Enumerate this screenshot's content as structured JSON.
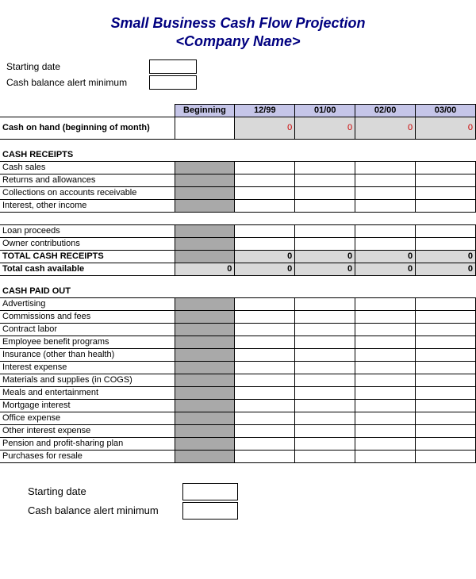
{
  "title_line1": "Small Business Cash Flow Projection",
  "title_line2": "<Company Name>",
  "fields": {
    "starting_date_label": "Starting date",
    "alert_min_label": "Cash balance alert minimum"
  },
  "colors": {
    "title": "#000080",
    "header_bg": "#c5c5e8",
    "gray_block": "#a9a9a9",
    "lightgray": "#d9d9d9",
    "border": "#000000",
    "zero_red": "#cc0000"
  },
  "columns": [
    "Beginning",
    "12/99",
    "01/00",
    "02/00",
    "03/00"
  ],
  "cash_on_hand": {
    "label": "Cash on hand (beginning of month)",
    "values": [
      "",
      "0",
      "0",
      "0",
      "0"
    ]
  },
  "receipts": {
    "section": "CASH RECEIPTS",
    "rows": [
      "Cash sales",
      "Returns and allowances",
      "Collections on accounts receivable",
      "Interest, other income",
      "",
      "Loan proceeds",
      "Owner contributions"
    ],
    "total_label": "TOTAL CASH RECEIPTS",
    "total_values": [
      "",
      "0",
      "0",
      "0",
      "0"
    ],
    "available_label": "Total cash available",
    "available_values": [
      "0",
      "0",
      "0",
      "0",
      "0"
    ]
  },
  "paid_out": {
    "section": "CASH PAID OUT",
    "rows": [
      "Advertising",
      "Commissions and fees",
      "Contract labor",
      "Employee benefit programs",
      "Insurance (other than health)",
      "Interest expense",
      "Materials and supplies (in COGS)",
      "Meals and entertainment",
      "Mortgage interest",
      "Office expense",
      "Other interest expense",
      "Pension and profit-sharing plan",
      "Purchases for resale"
    ]
  }
}
